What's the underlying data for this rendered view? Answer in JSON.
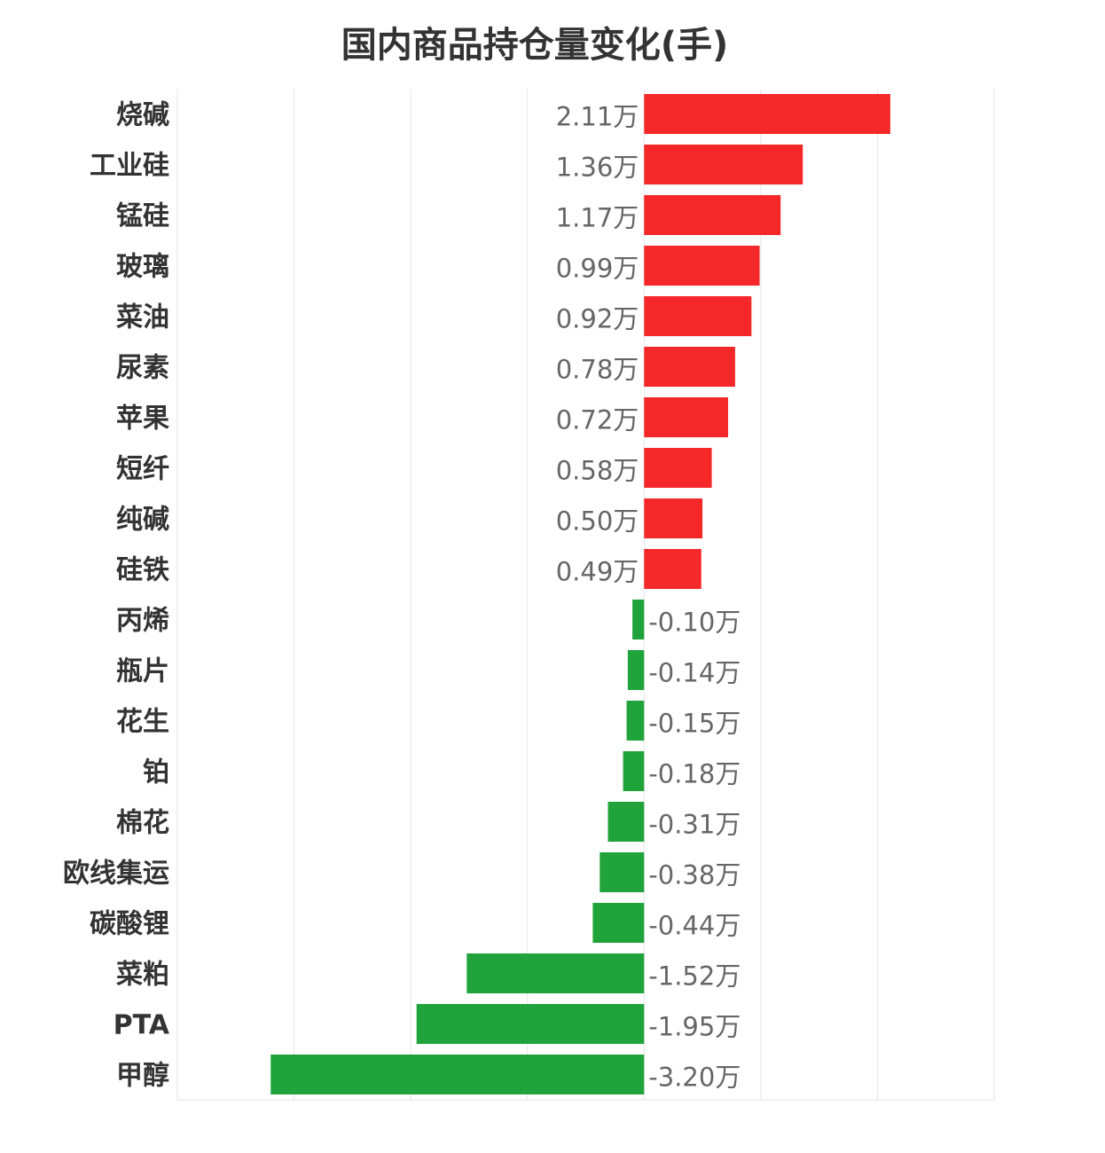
{
  "chart_data": {
    "type": "bar",
    "orientation": "horizontal",
    "title": "国内商品持仓量变化(手)",
    "unit_suffix": "万",
    "categories": [
      "烧碱",
      "工业硅",
      "锰硅",
      "玻璃",
      "菜油",
      "尿素",
      "苹果",
      "短纤",
      "纯碱",
      "硅铁",
      "丙烯",
      "瓶片",
      "花生",
      "铂",
      "棉花",
      "欧线集运",
      "碳酸锂",
      "菜粕",
      "PTA",
      "甲醇"
    ],
    "values": [
      2.11,
      1.36,
      1.17,
      0.99,
      0.92,
      0.78,
      0.72,
      0.58,
      0.5,
      0.49,
      -0.1,
      -0.14,
      -0.15,
      -0.18,
      -0.31,
      -0.38,
      -0.44,
      -1.52,
      -1.95,
      -3.2
    ],
    "labels": [
      "2.11万",
      "1.36万",
      "1.17万",
      "0.99万",
      "0.92万",
      "0.78万",
      "0.72万",
      "0.58万",
      "0.50万",
      "0.49万",
      "-0.10万",
      "-0.14万",
      "-0.15万",
      "-0.18万",
      "-0.31万",
      "-0.38万",
      "-0.44万",
      "-1.52万",
      "-1.95万",
      "-3.20万"
    ],
    "xlim": [
      -4,
      3
    ],
    "grid": true,
    "colors": {
      "positive": "#f42828",
      "negative": "#21a33b"
    }
  }
}
